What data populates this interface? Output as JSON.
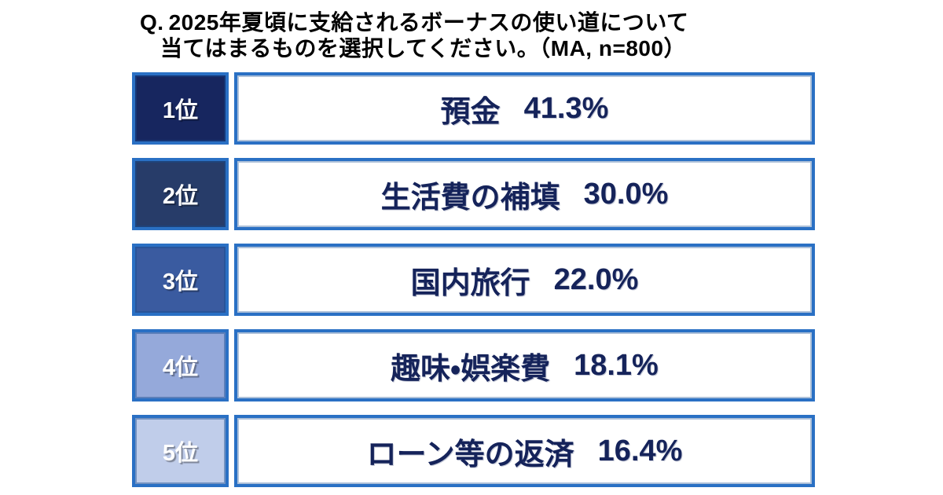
{
  "title": {
    "prefix": "Q.",
    "line1": "2025年夏頃に支給されるボーナスの使い道について",
    "line2": "当てはまるものを選択してください。（MA, n=800）"
  },
  "survey": {
    "items": [
      {
        "rank": "1位",
        "label": "預金",
        "value": "41.3%",
        "badge_color": "#17265f"
      },
      {
        "rank": "2位",
        "label": "生活費の補填",
        "value": "30.0%",
        "badge_color": "#273c69"
      },
      {
        "rank": "3位",
        "label": "国内旅行",
        "value": "22.0%",
        "badge_color": "#3a5ba0"
      },
      {
        "rank": "4位",
        "label": "趣味・娯楽費",
        "value": "18.1%",
        "badge_color": "#95a9da"
      },
      {
        "rank": "5位",
        "label": "ローン等の返済",
        "value": "16.4%",
        "badge_color": "#c0cdea"
      }
    ]
  },
  "chart_data": {
    "type": "bar",
    "title": "Q. 2025年夏頃に支給されるボーナスの使い道について当てはまるものを選択してください。",
    "note": "MA, n=800",
    "categories": [
      "預金",
      "生活費の補填",
      "国内旅行",
      "趣味・娯楽費",
      "ローン等の返済"
    ],
    "values": [
      41.3,
      30.0,
      22.0,
      18.1,
      16.4
    ],
    "unit": "%",
    "ranks": [
      "1位",
      "2位",
      "3位",
      "4位",
      "5位"
    ],
    "legend": false,
    "layout": "ranked-list"
  },
  "colors": {
    "background": "#ffffff",
    "box_border": "#2a70c4",
    "box_border_inner": "#1d5cab",
    "bar_text": "#15235a",
    "badge_text": "#ffffff",
    "title_text": "#000000"
  }
}
